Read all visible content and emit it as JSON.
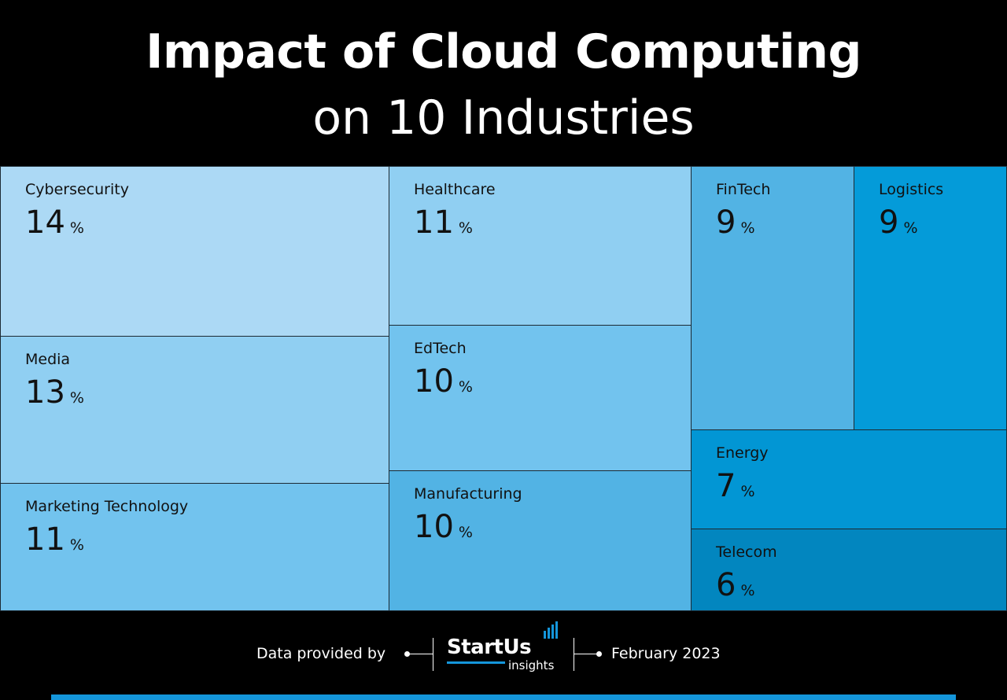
{
  "title": "Impact of Cloud Computing",
  "subtitle": "on 10 Industries",
  "chart_data": {
    "type": "treemap",
    "unit": "%",
    "items": [
      {
        "label": "Cybersecurity",
        "value": 14,
        "color": "#acd9f5"
      },
      {
        "label": "Media",
        "value": 13,
        "color": "#90cff2"
      },
      {
        "label": "Marketing Technology",
        "value": 11,
        "color": "#72c3ee"
      },
      {
        "label": "Healthcare",
        "value": 11,
        "color": "#90cff2"
      },
      {
        "label": "EdTech",
        "value": 10,
        "color": "#72c3ee"
      },
      {
        "label": "Manufacturing",
        "value": 10,
        "color": "#52b3e4"
      },
      {
        "label": "FinTech",
        "value": 9,
        "color": "#52b3e4"
      },
      {
        "label": "Logistics",
        "value": 9,
        "color": "#049bd9"
      },
      {
        "label": "Energy",
        "value": 7,
        "color": "#0296d4"
      },
      {
        "label": "Telecom",
        "value": 6,
        "color": "#0286bf"
      }
    ]
  },
  "footer": {
    "left_text": "Data provided by",
    "logo_main": "StartUs",
    "logo_sub": "insights",
    "date": "February 2023"
  }
}
